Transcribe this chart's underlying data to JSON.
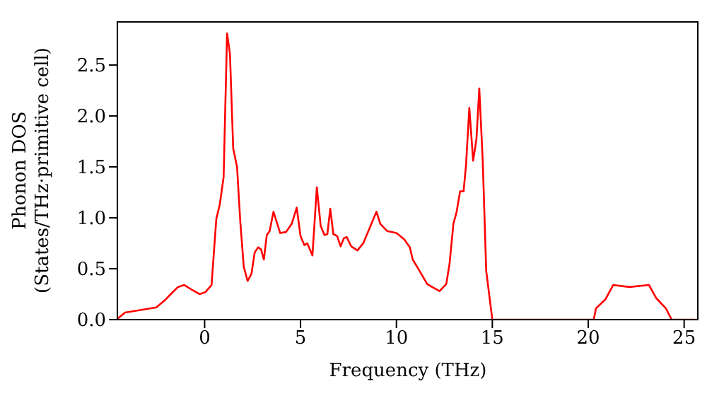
{
  "chart_data": {
    "type": "line",
    "xlabel": "Frequency (THz)",
    "ylabel": "Phonon DOS\n(States/THz·primitive cell)",
    "series": [
      {
        "color": "#ff0000",
        "x": [
          -4.53,
          -4.15,
          -2.52,
          -2.02,
          -1.77,
          -1.39,
          -1.06,
          -0.64,
          -0.26,
          0.04,
          0.36,
          0.61,
          0.79,
          0.99,
          1.17,
          1.32,
          1.49,
          1.69,
          1.86,
          2.04,
          2.24,
          2.44,
          2.61,
          2.79,
          2.94,
          3.09,
          3.24,
          3.39,
          3.59,
          3.94,
          4.24,
          4.54,
          4.8,
          5.0,
          5.2,
          5.35,
          5.62,
          5.85,
          6.05,
          6.25,
          6.4,
          6.55,
          6.71,
          6.91,
          7.09,
          7.26,
          7.41,
          7.64,
          7.97,
          8.27,
          8.65,
          8.96,
          9.16,
          9.51,
          10.0,
          10.4,
          10.7,
          10.85,
          11.2,
          11.6,
          11.86,
          12.25,
          12.6,
          12.77,
          12.97,
          13.14,
          13.32,
          13.5,
          13.63,
          13.8,
          14.0,
          14.17,
          14.32,
          14.5,
          14.68,
          15.0,
          20.29,
          20.4,
          20.9,
          21.3,
          22.14,
          23.17,
          23.55,
          24.05,
          24.35,
          25.55
        ],
        "values": [
          0.01,
          0.07,
          0.12,
          0.2,
          0.25,
          0.32,
          0.34,
          0.29,
          0.25,
          0.27,
          0.34,
          0.99,
          1.13,
          1.4,
          2.81,
          2.61,
          1.68,
          1.5,
          0.96,
          0.52,
          0.38,
          0.45,
          0.66,
          0.71,
          0.69,
          0.59,
          0.83,
          0.87,
          1.06,
          0.85,
          0.86,
          0.94,
          1.1,
          0.82,
          0.73,
          0.75,
          0.63,
          1.3,
          0.92,
          0.83,
          0.84,
          1.09,
          0.84,
          0.82,
          0.72,
          0.8,
          0.81,
          0.72,
          0.68,
          0.75,
          0.92,
          1.06,
          0.94,
          0.87,
          0.85,
          0.79,
          0.71,
          0.59,
          0.48,
          0.35,
          0.32,
          0.28,
          0.35,
          0.55,
          0.94,
          1.06,
          1.26,
          1.26,
          1.52,
          2.08,
          1.56,
          1.77,
          2.27,
          1.56,
          0.48,
          0,
          0,
          0.11,
          0.2,
          0.34,
          0.32,
          0.34,
          0.21,
          0.11,
          0,
          0
        ]
      }
    ],
    "xlim": [
      -4.55,
      25.75
    ],
    "xticks": [
      0,
      5,
      10,
      15,
      20,
      25
    ],
    "ylim": [
      0,
      2.93
    ],
    "yticks": [
      {
        "value": 0,
        "label": "0.0"
      },
      {
        "value": 0.5,
        "label": "0.5"
      },
      {
        "value": 1,
        "label": "1.0"
      },
      {
        "value": 1.5,
        "label": "1.5"
      },
      {
        "value": 2,
        "label": "2.0"
      },
      {
        "value": 2.5,
        "label": "2.5"
      }
    ],
    "grid": false,
    "legend": false,
    "marker": "none",
    "line_style": "solid"
  }
}
